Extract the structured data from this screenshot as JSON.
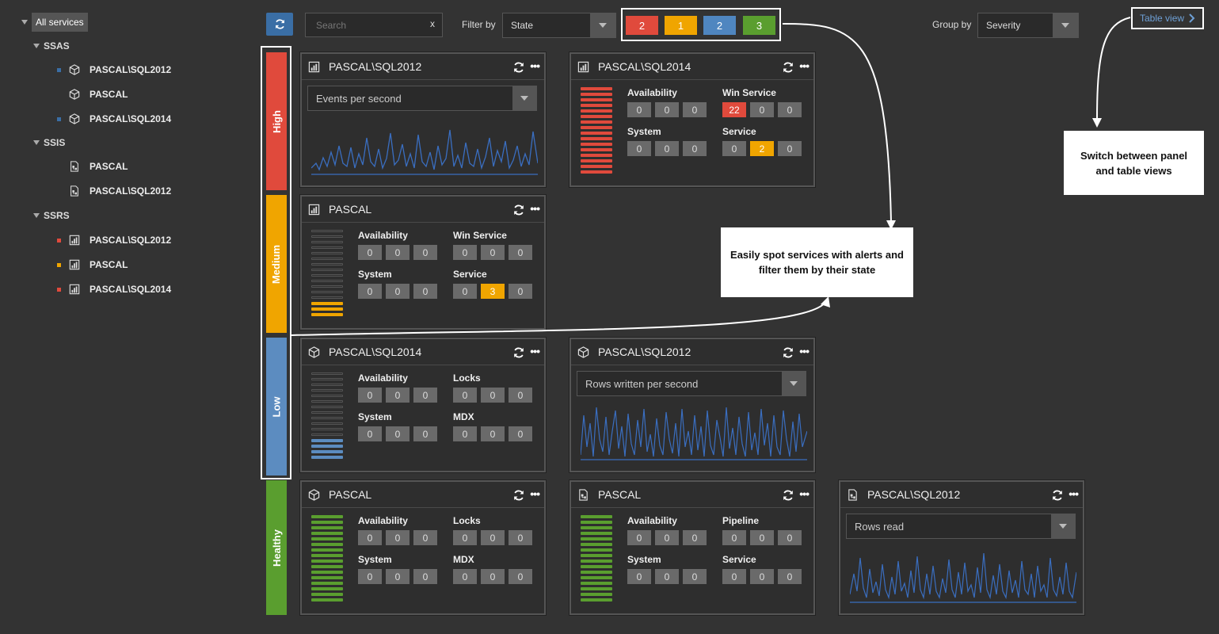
{
  "sidebar": {
    "root": "All services",
    "groups": [
      {
        "name": "SSAS",
        "items": [
          {
            "label": "PASCAL\\SQL2012",
            "marker": "#3a6ea5",
            "icon": "cube-icon"
          },
          {
            "label": "PASCAL",
            "marker": "",
            "icon": "cube-icon"
          },
          {
            "label": "PASCAL\\SQL2014",
            "marker": "#3a6ea5",
            "icon": "cube-icon"
          }
        ]
      },
      {
        "name": "SSIS",
        "items": [
          {
            "label": "PASCAL",
            "marker": "",
            "icon": "package-icon"
          },
          {
            "label": "PASCAL\\SQL2012",
            "marker": "",
            "icon": "package-icon"
          }
        ]
      },
      {
        "name": "SSRS",
        "items": [
          {
            "label": "PASCAL\\SQL2012",
            "marker": "#e04a3c",
            "icon": "report-icon"
          },
          {
            "label": "PASCAL",
            "marker": "#f0a500",
            "icon": "report-icon"
          },
          {
            "label": "PASCAL\\SQL2014",
            "marker": "#e04a3c",
            "icon": "report-icon"
          }
        ]
      }
    ]
  },
  "toolbar": {
    "search_placeholder": "Search",
    "clear": "x",
    "filter_label": "Filter by",
    "filter_value": "State",
    "group_label": "Group by",
    "group_value": "Severity",
    "table_view": "Table view",
    "states": [
      {
        "count": "2",
        "color": "#e04a3c"
      },
      {
        "count": "1",
        "color": "#f0a500"
      },
      {
        "count": "2",
        "color": "#4f86c0"
      },
      {
        "count": "3",
        "color": "#5a9e2f"
      }
    ]
  },
  "severity": [
    {
      "label": "High",
      "color": "#e04a3c"
    },
    {
      "label": "Medium",
      "color": "#f0a500"
    },
    {
      "label": "Low",
      "color": "#5c8cc0"
    },
    {
      "label": "Healthy",
      "color": "#5a9e2f"
    }
  ],
  "panels": {
    "high_ssas_2012": {
      "title": "PASCAL\\SQL2012",
      "icon": "report-icon",
      "metric": "Events per second"
    },
    "high_ssrs_2014": {
      "title": "PASCAL\\SQL2014",
      "icon": "report-icon",
      "labels": [
        "Availability",
        "Win Service",
        "System",
        "Service"
      ],
      "values": [
        [
          "0",
          "0",
          "0"
        ],
        [
          "22",
          "0",
          "0"
        ],
        [
          "0",
          "0",
          "0"
        ],
        [
          "0",
          "2",
          "0"
        ]
      ]
    },
    "medium_pascal": {
      "title": "PASCAL",
      "icon": "report-icon",
      "labels": [
        "Availability",
        "Win Service",
        "System",
        "Service"
      ],
      "values": [
        [
          "0",
          "0",
          "0"
        ],
        [
          "0",
          "0",
          "0"
        ],
        [
          "0",
          "0",
          "0"
        ],
        [
          "0",
          "3",
          "0"
        ]
      ]
    },
    "low_ssas_2014": {
      "title": "PASCAL\\SQL2014",
      "icon": "cube-icon",
      "labels": [
        "Availability",
        "Locks",
        "System",
        "MDX"
      ],
      "values": [
        [
          "0",
          "0",
          "0"
        ],
        [
          "0",
          "0",
          "0"
        ],
        [
          "0",
          "0",
          "0"
        ],
        [
          "0",
          "0",
          "0"
        ]
      ]
    },
    "low_ssas_2012": {
      "title": "PASCAL\\SQL2012",
      "icon": "cube-icon",
      "metric": "Rows written per second"
    },
    "healthy_ssas": {
      "title": "PASCAL",
      "icon": "cube-icon",
      "labels": [
        "Availability",
        "Locks",
        "System",
        "MDX"
      ],
      "values": [
        [
          "0",
          "0",
          "0"
        ],
        [
          "0",
          "0",
          "0"
        ],
        [
          "0",
          "0",
          "0"
        ],
        [
          "0",
          "0",
          "0"
        ]
      ]
    },
    "healthy_ssis": {
      "title": "PASCAL",
      "icon": "package-icon",
      "labels": [
        "Availability",
        "Pipeline",
        "System",
        "Service"
      ],
      "values": [
        [
          "0",
          "0",
          "0"
        ],
        [
          "0",
          "0",
          "0"
        ],
        [
          "0",
          "0",
          "0"
        ],
        [
          "0",
          "0",
          "0"
        ]
      ]
    },
    "healthy_ssis_2012": {
      "title": "PASCAL\\SQL2012",
      "icon": "package-icon",
      "metric": "Rows read"
    }
  },
  "callouts": {
    "alerts": "Easily spot services with alerts and filter them by their state",
    "table": "Switch between panel and table views"
  }
}
